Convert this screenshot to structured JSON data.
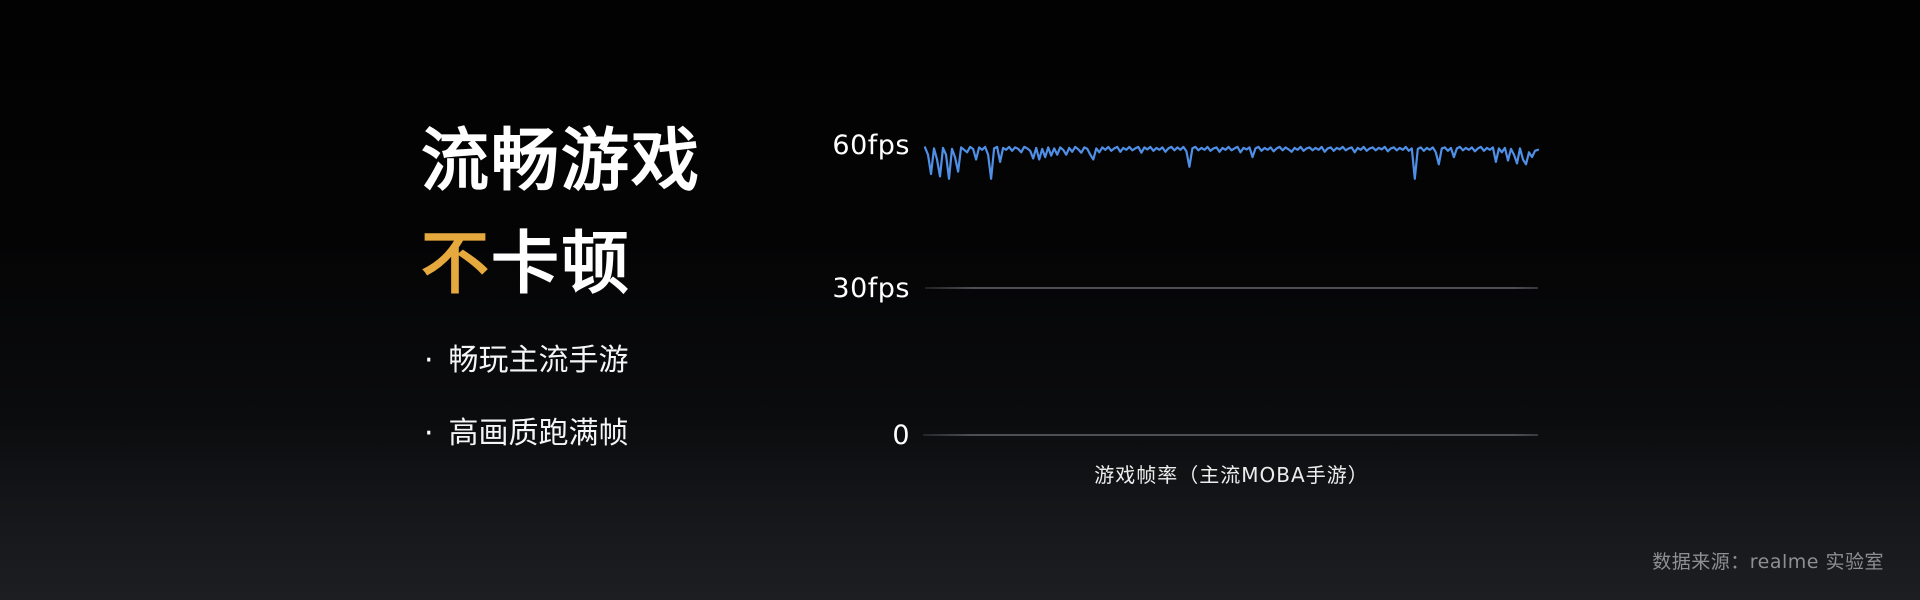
{
  "slide": {
    "title_line1": "流畅游戏",
    "title_line2_highlight": "不",
    "title_line2_rest": "卡顿",
    "bullets": {
      "marker": "·",
      "items": [
        "畅玩主流手游",
        "高画质跑满帧"
      ]
    },
    "source": "数据来源：realme 实验室"
  },
  "colors": {
    "accent_orange": "#E5A93E",
    "line_blue": "#4F8FE6",
    "grid_gray": "#4E4F53",
    "source_gray": "#8F8F92",
    "background_top": "#020202",
    "background_bottom": "#1D1E22"
  },
  "chart_data": {
    "type": "line",
    "caption": "游戏帧率（主流MOBA手游）",
    "xlabel": "游戏帧率（主流MOBA手游）",
    "ylabel": "",
    "unit": "fps",
    "ylim": [
      0,
      65
    ],
    "yticks": [
      {
        "label": "60fps",
        "value": 60
      },
      {
        "label": "30fps",
        "value": 30
      },
      {
        "label": "0",
        "value": 0
      }
    ],
    "grid": "horizontal lines at 30fps and 0",
    "legend_position": "none",
    "description": "FPS trace holding ~59-60fps with occasional brief dips (deepest ~53fps near start, at ~11%, at ~80%)",
    "series": [
      {
        "name": "游戏帧率",
        "values": [
          59.5,
          58.0,
          54.0,
          59.3,
          57.0,
          53.5,
          59.4,
          58.0,
          53.0,
          59.2,
          57.5,
          54.5,
          59.5,
          59.0,
          58.5,
          59.6,
          59.2,
          57.0,
          59.5,
          59.0,
          59.6,
          58.0,
          53.0,
          59.3,
          59.6,
          56.5,
          59.4,
          59.0,
          59.6,
          58.8,
          59.5,
          59.2,
          58.5,
          59.6,
          59.3,
          58.8,
          57.2,
          59.4,
          57.0,
          59.2,
          57.5,
          59.5,
          57.8,
          59.3,
          58.0,
          59.5,
          59.0,
          58.0,
          59.4,
          58.6,
          59.6,
          59.1,
          58.4,
          59.5,
          59.2,
          58.0,
          57.0,
          59.3,
          58.5,
          59.5,
          59.0,
          59.6,
          58.8,
          59.3,
          59.6,
          58.6,
          59.4,
          59.0,
          59.6,
          58.9,
          59.3,
          59.6,
          58.4,
          59.5,
          59.1,
          59.6,
          58.8,
          59.4,
          59.0,
          59.5,
          58.6,
          59.3,
          59.6,
          58.9,
          59.5,
          59.0,
          59.6,
          58.7,
          55.5,
          59.3,
          59.6,
          58.9,
          59.4,
          59.0,
          59.6,
          58.8,
          59.3,
          59.5,
          58.6,
          59.4,
          59.0,
          59.6,
          58.9,
          59.3,
          59.6,
          58.5,
          59.4,
          59.1,
          59.5,
          57.5,
          59.3,
          59.6,
          58.8,
          59.4,
          59.0,
          59.5,
          58.7,
          59.3,
          59.6,
          58.9,
          59.5,
          59.1,
          58.6,
          59.4,
          59.0,
          59.6,
          58.8,
          59.3,
          59.5,
          58.9,
          59.4,
          59.0,
          59.6,
          58.6,
          59.3,
          59.5,
          58.8,
          59.4,
          59.1,
          59.6,
          58.9,
          59.3,
          59.5,
          58.5,
          59.4,
          59.0,
          59.6,
          58.8,
          59.3,
          59.5,
          58.9,
          59.4,
          59.1,
          59.6,
          58.7,
          59.3,
          59.5,
          58.9,
          59.4,
          59.0,
          59.6,
          58.8,
          59.3,
          53.0,
          59.2,
          59.5,
          58.8,
          59.4,
          59.0,
          59.5,
          58.5,
          56.0,
          59.3,
          59.5,
          58.8,
          59.4,
          57.5,
          59.3,
          59.6,
          58.9,
          59.4,
          59.0,
          59.5,
          58.7,
          59.3,
          59.6,
          58.8,
          59.4,
          59.0,
          59.5,
          56.5,
          59.3,
          58.5,
          59.4,
          56.8,
          59.2,
          58.0,
          56.2,
          59.3,
          57.0,
          56.0,
          58.5,
          57.5,
          58.8,
          59.0
        ]
      }
    ]
  }
}
